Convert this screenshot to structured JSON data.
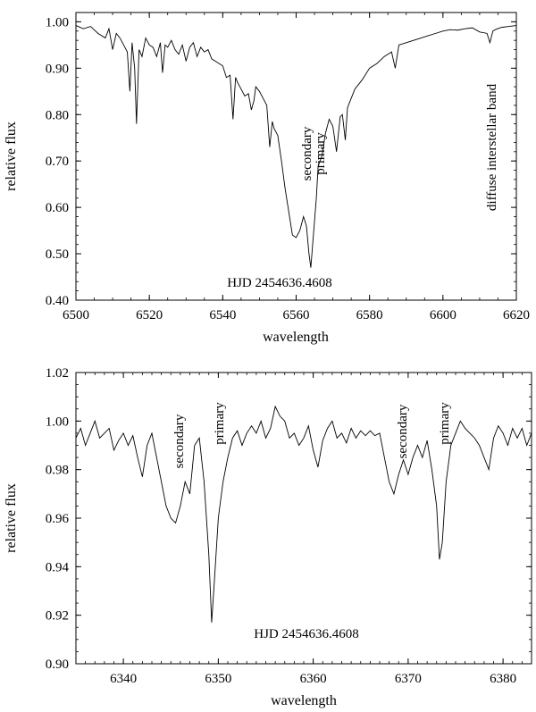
{
  "chart_data": [
    {
      "type": "line",
      "xlabel": "wavelength",
      "ylabel": "relative flux",
      "xlim": [
        6500,
        6620
      ],
      "ylim": [
        0.4,
        1.02
      ],
      "xticks": [
        "6500",
        "6520",
        "6540",
        "6560",
        "6580",
        "6600",
        "6620"
      ],
      "yticks": [
        "0.40",
        "0.50",
        "0.60",
        "0.70",
        "0.80",
        "0.90",
        "1.00"
      ],
      "grid": false,
      "labels": {
        "hjd": "HJD 2454636.4608",
        "secondary": "secondary",
        "primary": "primary",
        "dib": "diffuse interstellar band"
      },
      "x": [
        6500,
        6502,
        6504,
        6506,
        6508,
        6509,
        6510,
        6511,
        6512,
        6513,
        6514,
        6514.7,
        6515.3,
        6516,
        6516.5,
        6517.2,
        6518,
        6519,
        6520,
        6521,
        6522,
        6523,
        6523.6,
        6524.3,
        6525,
        6526,
        6527,
        6528,
        6529,
        6530,
        6531,
        6532,
        6533,
        6534,
        6535,
        6536,
        6537,
        6538,
        6539,
        6540,
        6541,
        6542,
        6542.8,
        6543.5,
        6544,
        6545,
        6546,
        6547,
        6547.8,
        6548.5,
        6549,
        6550,
        6551,
        6552,
        6552.8,
        6553.5,
        6554,
        6555,
        6556,
        6557,
        6558,
        6559,
        6560,
        6561,
        6562,
        6562.8,
        6563.5,
        6564,
        6564.8,
        6565.5,
        6566,
        6567,
        6568,
        6569,
        6570,
        6571,
        6572,
        6572.6,
        6573.4,
        6574,
        6575,
        6576,
        6578,
        6580,
        6582,
        6584,
        6586,
        6587,
        6588,
        6590,
        6592,
        6594,
        6596,
        6598,
        6600,
        6602,
        6604,
        6606,
        6608,
        6610,
        6612,
        6612.8,
        6613.6,
        6614.5,
        6616,
        6618,
        6620
      ],
      "y": [
        0.992,
        0.985,
        0.99,
        0.975,
        0.965,
        0.985,
        0.94,
        0.975,
        0.965,
        0.95,
        0.935,
        0.85,
        0.955,
        0.9,
        0.78,
        0.94,
        0.925,
        0.965,
        0.95,
        0.945,
        0.925,
        0.955,
        0.89,
        0.95,
        0.945,
        0.96,
        0.94,
        0.93,
        0.95,
        0.915,
        0.945,
        0.955,
        0.925,
        0.945,
        0.935,
        0.94,
        0.92,
        0.915,
        0.91,
        0.905,
        0.88,
        0.885,
        0.79,
        0.88,
        0.87,
        0.855,
        0.84,
        0.845,
        0.81,
        0.83,
        0.86,
        0.85,
        0.835,
        0.82,
        0.73,
        0.785,
        0.77,
        0.755,
        0.7,
        0.64,
        0.59,
        0.54,
        0.535,
        0.55,
        0.58,
        0.56,
        0.5,
        0.47,
        0.55,
        0.62,
        0.69,
        0.71,
        0.76,
        0.79,
        0.775,
        0.72,
        0.795,
        0.8,
        0.745,
        0.815,
        0.835,
        0.855,
        0.875,
        0.9,
        0.91,
        0.925,
        0.935,
        0.9,
        0.95,
        0.955,
        0.96,
        0.965,
        0.97,
        0.975,
        0.98,
        0.983,
        0.982,
        0.985,
        0.987,
        0.978,
        0.975,
        0.955,
        0.98,
        0.984,
        0.988,
        0.99,
        0.992
      ]
    },
    {
      "type": "line",
      "xlabel": "wavelength",
      "ylabel": "relative flux",
      "xlim": [
        6335,
        6383
      ],
      "ylim": [
        0.9,
        1.02
      ],
      "xticks": [
        "6340",
        "6350",
        "6360",
        "6370",
        "6380"
      ],
      "yticks": [
        "0.90",
        "0.92",
        "0.94",
        "0.96",
        "0.98",
        "1.00",
        "1.02"
      ],
      "grid": false,
      "labels": {
        "hjd": "HJD 2454636.4608",
        "secondary_1": "secondary",
        "primary_1": "primary",
        "secondary_2": "secondary",
        "primary_2": "primary"
      },
      "x": [
        6335,
        6335.5,
        6336,
        6336.5,
        6337,
        6337.5,
        6338,
        6338.5,
        6339,
        6339.5,
        6340,
        6340.5,
        6341,
        6341.5,
        6342,
        6342.5,
        6343,
        6343.5,
        6344,
        6344.5,
        6345,
        6345.5,
        6346,
        6346.5,
        6347,
        6347.5,
        6348,
        6348.5,
        6349,
        6349.3,
        6349.6,
        6350,
        6350.5,
        6351,
        6351.5,
        6352,
        6352.5,
        6353,
        6353.5,
        6354,
        6354.5,
        6355,
        6355.5,
        6356,
        6356.5,
        6357,
        6357.5,
        6358,
        6358.5,
        6359,
        6359.5,
        6360,
        6360.5,
        6361,
        6361.5,
        6362,
        6362.5,
        6363,
        6363.5,
        6364,
        6364.5,
        6365,
        6365.5,
        6366,
        6366.5,
        6367,
        6367.5,
        6368,
        6368.5,
        6369,
        6369.5,
        6370,
        6370.5,
        6371,
        6371.5,
        6372,
        6372.5,
        6373,
        6373.3,
        6373.6,
        6374,
        6374.5,
        6375,
        6375.5,
        6376,
        6376.5,
        6377,
        6377.5,
        6378,
        6378.5,
        6379,
        6379.5,
        6380,
        6380.5,
        6381,
        6381.5,
        6382,
        6382.5,
        6383
      ],
      "y": [
        0.993,
        0.997,
        0.99,
        0.995,
        1.0,
        0.993,
        0.995,
        0.997,
        0.988,
        0.992,
        0.995,
        0.99,
        0.994,
        0.985,
        0.977,
        0.99,
        0.995,
        0.985,
        0.975,
        0.965,
        0.96,
        0.958,
        0.965,
        0.975,
        0.97,
        0.99,
        0.993,
        0.975,
        0.945,
        0.917,
        0.935,
        0.96,
        0.975,
        0.985,
        0.993,
        0.996,
        0.99,
        0.995,
        0.998,
        0.995,
        1.0,
        0.993,
        0.997,
        1.006,
        1.002,
        1.0,
        0.993,
        0.995,
        0.99,
        0.993,
        0.998,
        0.988,
        0.981,
        0.992,
        0.997,
        1.0,
        0.993,
        0.995,
        0.991,
        0.997,
        0.993,
        0.996,
        0.994,
        0.996,
        0.994,
        0.995,
        0.985,
        0.975,
        0.97,
        0.978,
        0.984,
        0.978,
        0.985,
        0.99,
        0.985,
        0.992,
        0.98,
        0.965,
        0.943,
        0.95,
        0.975,
        0.99,
        0.995,
        1.0,
        0.997,
        0.995,
        0.993,
        0.99,
        0.985,
        0.98,
        0.993,
        0.998,
        0.995,
        0.99,
        0.997,
        0.993,
        0.997,
        0.99,
        0.995
      ]
    }
  ]
}
